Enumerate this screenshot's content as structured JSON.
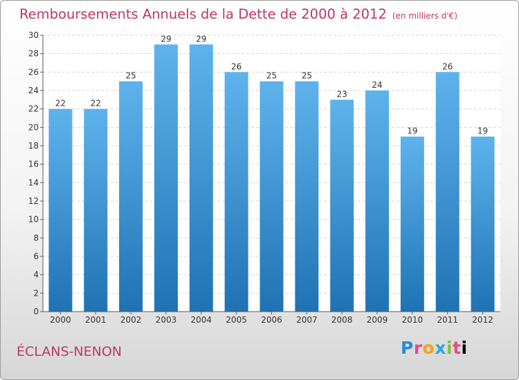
{
  "header": {
    "title": "Remboursements Annuels de la Dette de 2000 à 2012",
    "unit": "(en milliers d'€)"
  },
  "footer": {
    "commune": "ÉCLANS-NENON",
    "logo_letters": [
      "P",
      "r",
      "o",
      "x",
      "i",
      "t",
      "i"
    ]
  },
  "colors": {
    "title": "#c0346a",
    "bar_top": "#5fb3ec",
    "bar_bottom": "#1f73b4"
  },
  "chart_data": {
    "type": "bar",
    "categories": [
      "2000",
      "2001",
      "2002",
      "2003",
      "2004",
      "2005",
      "2006",
      "2007",
      "2008",
      "2009",
      "2010",
      "2011",
      "2012"
    ],
    "values": [
      22,
      22,
      25,
      29,
      29,
      26,
      25,
      25,
      23,
      24,
      19,
      26,
      19
    ],
    "ylim": [
      0,
      30
    ],
    "yticks": [
      0,
      2,
      4,
      6,
      8,
      10,
      12,
      14,
      16,
      18,
      20,
      22,
      24,
      26,
      28,
      30
    ],
    "grid": true,
    "data_labels": true
  }
}
